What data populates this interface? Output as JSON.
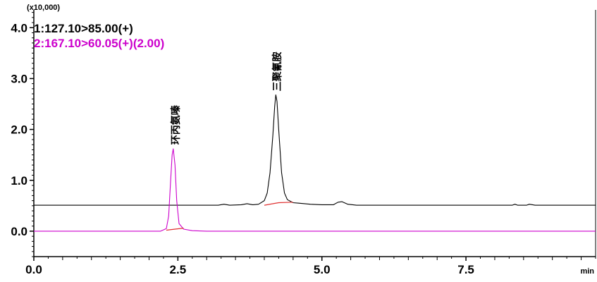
{
  "chart_data": {
    "type": "line",
    "title": "",
    "xlabel": "min",
    "ylabel": "",
    "y_multiplier_label": "(x10,000)",
    "xlim": [
      0.0,
      9.75
    ],
    "ylim": [
      -0.5,
      4.35
    ],
    "x_ticks": [
      0.0,
      2.5,
      5.0,
      7.5
    ],
    "x_tick_labels": [
      "0.0",
      "2.5",
      "5.0",
      "7.5"
    ],
    "y_ticks": [
      0.0,
      1.0,
      2.0,
      3.0,
      4.0
    ],
    "y_tick_labels": [
      "0.0",
      "1.0",
      "2.0",
      "3.0",
      "4.0"
    ],
    "grid": false,
    "legend_position": "top-left",
    "series": [
      {
        "name": "1:127.10>85.00(+)",
        "color": "#000000",
        "x": [
          0.0,
          2.8,
          3.2,
          3.3,
          3.4,
          3.6,
          3.7,
          3.8,
          3.9,
          4.0,
          4.05,
          4.1,
          4.15,
          4.18,
          4.2,
          4.22,
          4.25,
          4.3,
          4.35,
          4.4,
          4.5,
          4.6,
          4.8,
          5.0,
          5.2,
          5.28,
          5.35,
          5.45,
          5.6,
          6.5,
          8.3,
          8.35,
          8.4,
          8.55,
          8.6,
          8.7,
          9.75
        ],
        "values": [
          0.51,
          0.51,
          0.51,
          0.53,
          0.51,
          0.52,
          0.54,
          0.52,
          0.53,
          0.6,
          0.75,
          1.15,
          1.9,
          2.45,
          2.68,
          2.55,
          2.0,
          1.15,
          0.75,
          0.62,
          0.56,
          0.55,
          0.53,
          0.52,
          0.52,
          0.57,
          0.58,
          0.53,
          0.51,
          0.51,
          0.51,
          0.53,
          0.51,
          0.51,
          0.53,
          0.51,
          0.51
        ]
      },
      {
        "name": "2:167.10>60.05(+)(2.00)",
        "color": "#cc00cc",
        "x": [
          0.0,
          2.2,
          2.3,
          2.34,
          2.37,
          2.4,
          2.42,
          2.45,
          2.48,
          2.52,
          2.6,
          2.75,
          3.0,
          9.75
        ],
        "values": [
          0.0,
          0.0,
          0.05,
          0.3,
          0.9,
          1.5,
          1.62,
          1.3,
          0.6,
          0.15,
          0.04,
          0.01,
          0.0,
          0.0
        ]
      },
      {
        "name": "",
        "color": "#e03030",
        "x": [
          2.3,
          2.45,
          2.6
        ],
        "values": [
          0.02,
          0.04,
          0.06
        ]
      },
      {
        "name": "",
        "color": "#e03030",
        "x": [
          4.0,
          4.25,
          4.5
        ],
        "values": [
          0.51,
          0.56,
          0.57
        ]
      }
    ],
    "annotations": [
      {
        "text": "环丙氨嗪",
        "x": 2.52,
        "y": 1.7
      },
      {
        "text": "三聚氰胺",
        "x": 4.28,
        "y": 2.75
      }
    ]
  }
}
